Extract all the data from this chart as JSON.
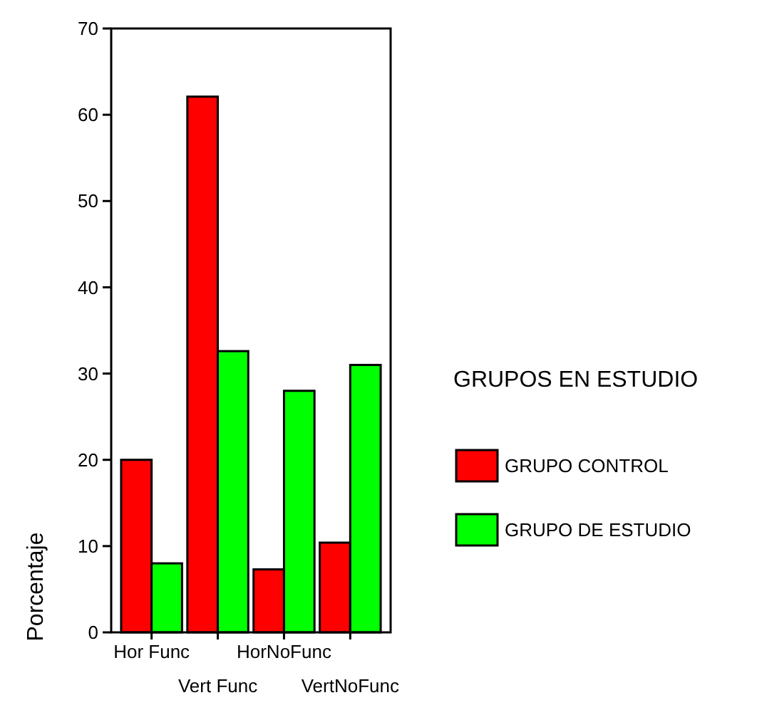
{
  "chart_data": {
    "type": "bar",
    "ylabel": "Porcentaje",
    "legend_title": "GRUPOS EN ESTUDIO",
    "categories": [
      "Hor Func",
      "Vert Func",
      "HorNoFunc",
      "VertNoFunc"
    ],
    "series": [
      {
        "name": "GRUPO CONTROL",
        "color": "#ff0000",
        "values": [
          20,
          62.1,
          7.3,
          10.4
        ]
      },
      {
        "name": "GRUPO DE ESTUDIO",
        "color": "#00ff00",
        "values": [
          8,
          32.6,
          28,
          31
        ]
      }
    ],
    "ylim": [
      0,
      70
    ],
    "yticks": [
      0,
      10,
      20,
      30,
      40,
      50,
      60,
      70
    ],
    "legend": "right"
  }
}
